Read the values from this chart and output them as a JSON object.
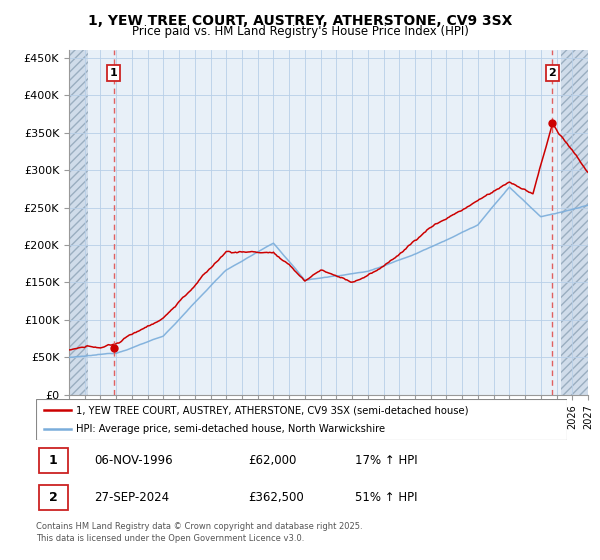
{
  "title_line1": "1, YEW TREE COURT, AUSTREY, ATHERSTONE, CV9 3SX",
  "title_line2": "Price paid vs. HM Land Registry's House Price Index (HPI)",
  "ylabel_ticks": [
    "£0",
    "£50K",
    "£100K",
    "£150K",
    "£200K",
    "£250K",
    "£300K",
    "£350K",
    "£400K",
    "£450K"
  ],
  "ytick_values": [
    0,
    50000,
    100000,
    150000,
    200000,
    250000,
    300000,
    350000,
    400000,
    450000
  ],
  "xlim": [
    1994.0,
    2027.0
  ],
  "ylim": [
    0,
    460000
  ],
  "purchase1_date": 1996.85,
  "purchase1_price": 62000,
  "purchase2_date": 2024.73,
  "purchase2_price": 362500,
  "legend_entries": [
    "1, YEW TREE COURT, AUSTREY, ATHERSTONE, CV9 3SX (semi-detached house)",
    "HPI: Average price, semi-detached house, North Warwickshire"
  ],
  "annotation1": {
    "label": "1",
    "date_text": "06-NOV-1996",
    "price_text": "£62,000",
    "hpi_text": "17% ↑ HPI"
  },
  "annotation2": {
    "label": "2",
    "date_text": "27-SEP-2024",
    "price_text": "£362,500",
    "hpi_text": "51% ↑ HPI"
  },
  "footer": "Contains HM Land Registry data © Crown copyright and database right 2025.\nThis data is licensed under the Open Government Licence v3.0.",
  "red_color": "#cc0000",
  "blue_color": "#7aaddb",
  "dashed_red": "#e06060",
  "grid_color": "#b8cfe8",
  "plot_bg": "#e8f0f8",
  "hatch_bg": "#d0dcea"
}
